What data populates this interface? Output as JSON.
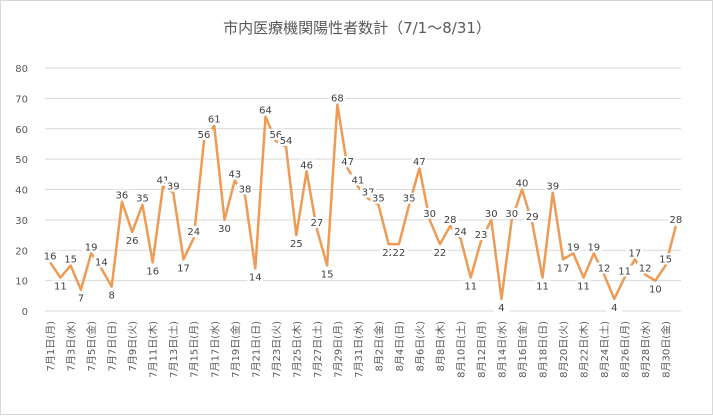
{
  "chart_data": {
    "type": "line",
    "title": "市内医療機関陽性者数計（7/1～8/31）",
    "xlabel": "",
    "ylabel": "",
    "ylim": [
      0,
      80
    ],
    "yticks": [
      0,
      10,
      20,
      30,
      40,
      50,
      60,
      70,
      80
    ],
    "grid": true,
    "legend": "none",
    "line_color": "#ED9B55",
    "categories": [
      "7月1日",
      "7月2日",
      "7月3日",
      "7月4日",
      "7月5日",
      "7月6日",
      "7月7日",
      "7月8日",
      "7月9日",
      "7月10日",
      "7月11日",
      "7月12日",
      "7月13日",
      "7月14日",
      "7月15日",
      "7月16日",
      "7月17日",
      "7月18日",
      "7月19日",
      "7月20日",
      "7月21日",
      "7月22日",
      "7月23日",
      "7月24日",
      "7月25日",
      "7月26日",
      "7月27日",
      "7月28日",
      "7月29日",
      "7月30日",
      "7月31日",
      "8月1日",
      "8月2日",
      "8月3日",
      "8月4日",
      "8月5日",
      "8月6日",
      "8月7日",
      "8月8日",
      "8月9日",
      "8月10日",
      "8月11日",
      "8月12日",
      "8月13日",
      "8月14日",
      "8月15日",
      "8月16日",
      "8月17日",
      "8月18日",
      "8月19日",
      "8月20日",
      "8月21日",
      "8月22日",
      "8月23日",
      "8月24日",
      "8月25日",
      "8月26日",
      "8月27日",
      "8月28日",
      "8月29日",
      "8月30日",
      "8月31日"
    ],
    "tick_labels": [
      "7月1日(月)",
      "7月3日(水)",
      "7月5日(金)",
      "7月7日(日)",
      "7月9日(火)",
      "7月11日(木)",
      "7月13日(土)",
      "7月15日(月)",
      "7月17日(水)",
      "7月19日(金)",
      "7月21日(日)",
      "7月23日(火)",
      "7月25日(木)",
      "7月27日(土)",
      "7月29日(月)",
      "7月31日(水)",
      "8月2日(金)",
      "8月4日(日)",
      "8月6日(火)",
      "8月8日(木)",
      "8月10日(土)",
      "8月12日(月)",
      "8月14日(水)",
      "8月16日(金)",
      "8月18日(日)",
      "8月20日(火)",
      "8月22日(木)",
      "8月24日(土)",
      "8月26日(月)",
      "8月28日(水)",
      "8月30日(金)"
    ],
    "values": [
      16,
      11,
      15,
      7,
      19,
      14,
      8,
      36,
      26,
      35,
      16,
      41,
      39,
      17,
      24,
      56,
      61,
      30,
      43,
      38,
      14,
      64,
      56,
      54,
      25,
      46,
      27,
      15,
      68,
      47,
      41,
      37,
      35,
      22,
      22,
      35,
      47,
      30,
      22,
      28,
      24,
      11,
      23,
      30,
      4,
      30,
      40,
      29,
      11,
      39,
      17,
      19,
      11,
      19,
      12,
      4,
      11,
      17,
      12,
      10,
      15,
      28
    ]
  }
}
